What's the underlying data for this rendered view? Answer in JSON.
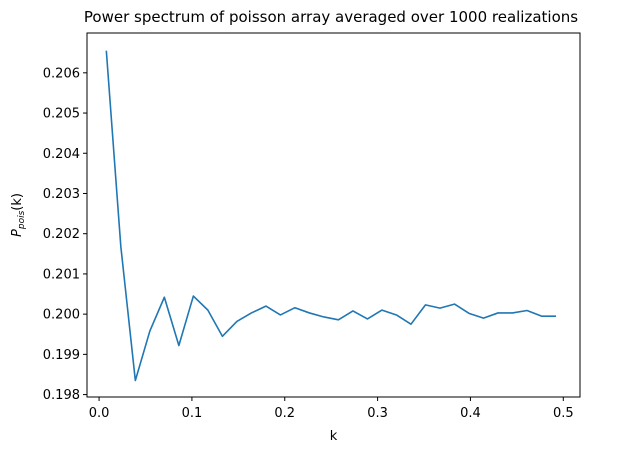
{
  "chart_data": {
    "type": "line",
    "title": "Power spectrum of poisson array averaged over 1000 realizations",
    "xlabel": "k",
    "ylabel": {
      "main": "P",
      "subscript": "pois",
      "suffix": "(k)"
    },
    "xlim": [
      -0.013,
      0.518
    ],
    "ylim": [
      0.19794,
      0.20699
    ],
    "xticks": [
      0.0,
      0.1,
      0.2,
      0.3,
      0.4,
      0.5
    ],
    "xtick_labels": [
      "0.0",
      "0.1",
      "0.2",
      "0.3",
      "0.4",
      "0.5"
    ],
    "yticks": [
      0.198,
      0.199,
      0.2,
      0.201,
      0.202,
      0.203,
      0.204,
      0.205,
      0.206
    ],
    "ytick_labels": [
      "0.198",
      "0.199",
      "0.200",
      "0.201",
      "0.202",
      "0.203",
      "0.204",
      "0.205",
      "0.206"
    ],
    "grid": false,
    "series": [
      {
        "color": "#1f77b4",
        "x": [
          0.0078125,
          0.0234375,
          0.0390625,
          0.0546875,
          0.0703125,
          0.0859375,
          0.1015625,
          0.1171875,
          0.1328125,
          0.1484375,
          0.1640625,
          0.1796875,
          0.1953125,
          0.2109375,
          0.2265625,
          0.2421875,
          0.2578125,
          0.2734375,
          0.2890625,
          0.3046875,
          0.3203125,
          0.3359375,
          0.3515625,
          0.3671875,
          0.3828125,
          0.3984375,
          0.4140625,
          0.4296875,
          0.4453125,
          0.4609375,
          0.4765625,
          0.4921875
        ],
        "y": [
          0.20655,
          0.20168,
          0.19835,
          0.19958,
          0.20042,
          0.19922,
          0.20045,
          0.2001,
          0.19945,
          0.19982,
          0.20003,
          0.2002,
          0.19998,
          0.20016,
          0.20003,
          0.19993,
          0.19986,
          0.20008,
          0.19988,
          0.2001,
          0.19998,
          0.19975,
          0.20023,
          0.20015,
          0.20025,
          0.20002,
          0.1999,
          0.20003,
          0.20003,
          0.20009,
          0.19995,
          0.19995
        ]
      }
    ]
  }
}
